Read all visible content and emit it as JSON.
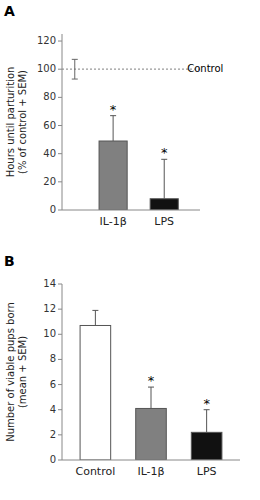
{
  "chart_data": [
    {
      "type": "bar",
      "title": "A",
      "categories": [
        "IL-1β",
        "LPS"
      ],
      "values": [
        49,
        8
      ],
      "errors": [
        18,
        28
      ],
      "colors": [
        "#808080",
        "#111111"
      ],
      "annotations": [
        "*",
        "*"
      ],
      "reference": {
        "value": 100,
        "error": 7,
        "label": "Control"
      },
      "ylabel": "Hours until parturition\n(% of control + SEM)",
      "ylim": [
        0,
        125
      ],
      "yticks": [
        0,
        20,
        40,
        60,
        80,
        100,
        120
      ]
    },
    {
      "type": "bar",
      "title": "B",
      "categories": [
        "Control",
        "IL-1β",
        "LPS"
      ],
      "values": [
        10.7,
        4.1,
        2.2
      ],
      "errors": [
        1.2,
        1.7,
        1.8
      ],
      "colors": [
        "#ffffff",
        "#808080",
        "#111111"
      ],
      "annotations": [
        null,
        "*",
        "*"
      ],
      "ylabel": "Number of viable pups born\n(mean + SEM)",
      "ylim": [
        0,
        14
      ],
      "yticks": [
        0,
        2,
        4,
        6,
        8,
        10,
        12,
        14
      ]
    }
  ]
}
